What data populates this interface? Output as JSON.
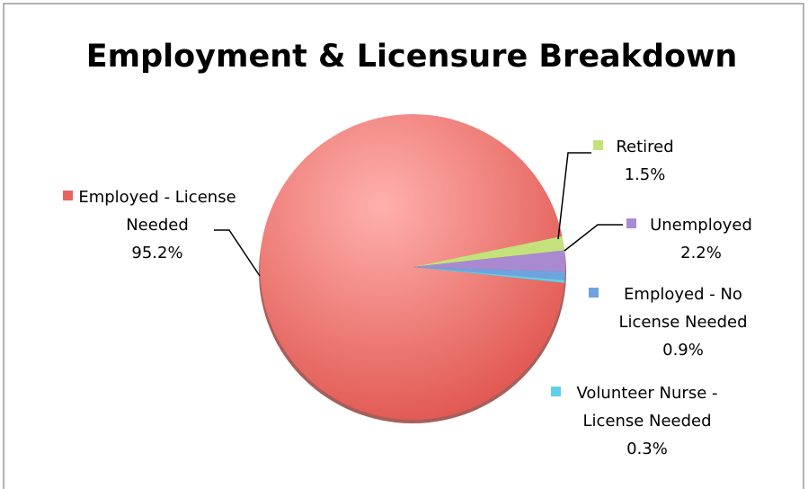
{
  "chart_data": {
    "type": "pie",
    "title": "Employment & Licensure Breakdown",
    "categories": [
      "Employed - License Needed",
      "Retired",
      "Unemployed",
      "Employed - No License Needed",
      "Volunteer Nurse - License Needed"
    ],
    "values": [
      95.2,
      1.5,
      2.2,
      0.9,
      0.3
    ],
    "value_labels": [
      "95.2%",
      "1.5%",
      "2.2%",
      "0.9%",
      "0.3%"
    ],
    "colors": [
      "#e8645f",
      "#c4e27b",
      "#a98ad0",
      "#6fa3e0",
      "#5fd0e8"
    ]
  }
}
